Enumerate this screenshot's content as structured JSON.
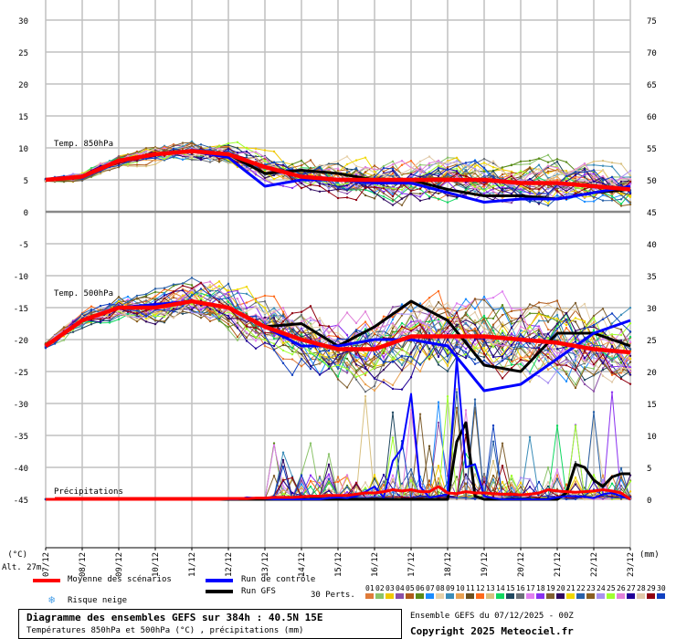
{
  "chart_data": {
    "type": "line",
    "title": "Diagramme des ensembles GEFS sur 384h : 40.5N 15E",
    "subtitle": "Températures 850hPa et 500hPa (°C) , précipitations (mm)",
    "left_axis": {
      "label": "(°C)",
      "ticks": [
        30,
        25,
        20,
        15,
        10,
        5,
        0,
        -5,
        -10,
        -15,
        -20,
        -25,
        -30,
        -35,
        -40,
        -45
      ],
      "range": [
        -45,
        30
      ]
    },
    "right_axis": {
      "label": "(mm)",
      "ticks": [
        75,
        70,
        65,
        60,
        55,
        50,
        45,
        40,
        35,
        30,
        25,
        20,
        15,
        10,
        5,
        0
      ],
      "range": [
        0,
        75
      ]
    },
    "x_ticks": [
      "07/12",
      "08/12",
      "09/12",
      "10/12",
      "11/12",
      "12/12",
      "13/12",
      "14/12",
      "15/12",
      "16/12",
      "17/12",
      "18/12",
      "19/12",
      "20/12",
      "21/12",
      "22/12",
      "23/12"
    ],
    "panel_labels": {
      "t850": "Temp. 850hPa",
      "t500": "Temp. 500hPa",
      "precip": "Précipitations"
    },
    "altitude": "Alt. 27m",
    "series_daily": {
      "t850_mean": [
        5,
        5.5,
        8,
        9,
        9.5,
        9,
        7,
        5.5,
        5,
        5,
        5,
        5,
        5,
        4.5,
        4.5,
        4,
        3.5
      ],
      "t850_control": [
        5,
        5.5,
        8,
        9,
        9.5,
        8.5,
        4,
        5,
        5,
        4.5,
        4.5,
        3,
        1.5,
        2,
        2,
        3,
        4
      ],
      "t850_gfs": [
        5,
        5.5,
        8,
        9,
        9.5,
        9,
        6,
        6.5,
        6,
        5,
        5,
        3.5,
        2.5,
        2.5,
        2,
        3,
        3.5
      ],
      "t500_mean": [
        -21,
        -17,
        -15,
        -15,
        -14,
        -15,
        -18,
        -20,
        -21.5,
        -21.5,
        -19.5,
        -19.5,
        -19.5,
        -20,
        -20.5,
        -21.5,
        -22
      ],
      "t500_control": [
        -21,
        -17,
        -15,
        -14.5,
        -14,
        -15,
        -18,
        -21,
        -21,
        -20,
        -20,
        -21,
        -28,
        -27,
        -23,
        -19,
        -17
      ],
      "t500_gfs": [
        -21,
        -17,
        -15,
        -15,
        -14,
        -15,
        -18,
        -17.5,
        -21,
        -18,
        -14,
        -17,
        -24,
        -25,
        -19,
        -19,
        -21
      ]
    },
    "precip_6h": {
      "mean": [
        0,
        0,
        0,
        0,
        0,
        0,
        0,
        0,
        0,
        0,
        0,
        0,
        0,
        0,
        0,
        0,
        0,
        0,
        0,
        0,
        0.1,
        0.1,
        0.1,
        0.2,
        0.2,
        0.3,
        0.3,
        0.3,
        0.4,
        0.5,
        0.5,
        0.6,
        0.6,
        0.6,
        0.8,
        1,
        1,
        1.2,
        1.5,
        1.3,
        1.5,
        1.2,
        1.2,
        2,
        1,
        0.9,
        1.2,
        1,
        1,
        0.9,
        0.8,
        0.8,
        0.7,
        0.8,
        1,
        1.5,
        1.3,
        1.2,
        1.1,
        1.2,
        1.3,
        1.5,
        1.3,
        1,
        0
      ],
      "control": [
        0,
        0,
        0,
        0,
        0,
        0,
        0,
        0,
        0,
        0,
        0,
        0,
        0,
        0,
        0,
        0,
        0,
        0,
        0,
        0,
        0,
        0,
        0.3,
        0.2,
        0.1,
        0,
        0,
        0,
        0,
        0,
        0,
        0.2,
        0.3,
        0.2,
        0.5,
        1.2,
        2,
        0.3,
        6,
        8,
        16.5,
        2,
        0.3,
        0.5,
        0.8,
        22,
        5,
        5.5,
        0.5,
        0.2,
        0,
        0,
        0,
        0,
        0,
        0,
        0.3,
        0.5,
        0.5,
        0.4,
        0.2,
        0.8,
        1,
        0.5,
        0
      ],
      "gfs": [
        0,
        0,
        0,
        0,
        0,
        0,
        0,
        0,
        0,
        0,
        0,
        0,
        0,
        0,
        0,
        0,
        0,
        0,
        0,
        0,
        0,
        0,
        0,
        0,
        0,
        0,
        0,
        0,
        0,
        0,
        0,
        0,
        0,
        0,
        0,
        0,
        0,
        0,
        0,
        0,
        0,
        0,
        0,
        0,
        0,
        9,
        12,
        0.5,
        0,
        0,
        0,
        0,
        0,
        0,
        0,
        0,
        0,
        1,
        5.5,
        5,
        3,
        2,
        3.5,
        4,
        4
      ]
    },
    "legend": {
      "mean": "Moyenne des scénarios",
      "control": "Run de contrôle",
      "gfs": "Run GFS",
      "snow": "Risque neige",
      "perts": "30 Perts."
    },
    "colors": {
      "mean": "#ff0000",
      "control": "#0000ff",
      "gfs": "#000000"
    },
    "perturbations": [
      {
        "id": "01",
        "color": "#e07b39"
      },
      {
        "id": "02",
        "color": "#8bc36a"
      },
      {
        "id": "03",
        "color": "#f0c800"
      },
      {
        "id": "04",
        "color": "#8b4ea6"
      },
      {
        "id": "05",
        "color": "#b05a1a"
      },
      {
        "id": "06",
        "color": "#5a8a1a"
      },
      {
        "id": "07",
        "color": "#1a8cff"
      },
      {
        "id": "08",
        "color": "#e6d0a8"
      },
      {
        "id": "09",
        "color": "#3a8cb8"
      },
      {
        "id": "10",
        "color": "#e8a050"
      },
      {
        "id": "11",
        "color": "#6a5020"
      },
      {
        "id": "12",
        "color": "#ff6a1a"
      },
      {
        "id": "13",
        "color": "#d8c080"
      },
      {
        "id": "14",
        "color": "#10d860"
      },
      {
        "id": "15",
        "color": "#204860"
      },
      {
        "id": "16",
        "color": "#6a7078"
      },
      {
        "id": "17",
        "color": "#e080f0"
      },
      {
        "id": "18",
        "color": "#8a30f0"
      },
      {
        "id": "19",
        "color": "#806030"
      },
      {
        "id": "20",
        "color": "#300860"
      },
      {
        "id": "21",
        "color": "#f0d800"
      },
      {
        "id": "22",
        "color": "#2860a8"
      },
      {
        "id": "23",
        "color": "#8a6020"
      },
      {
        "id": "24",
        "color": "#a890f0"
      },
      {
        "id": "25",
        "color": "#a0ff30"
      },
      {
        "id": "26",
        "color": "#e080d8"
      },
      {
        "id": "27",
        "color": "#200098"
      },
      {
        "id": "28",
        "color": "#e0c8a8"
      },
      {
        "id": "29",
        "color": "#900010"
      },
      {
        "id": "30",
        "color": "#1040c0"
      }
    ]
  },
  "footer": {
    "run": "Ensemble GEFS du 07/12/2025 - 00Z",
    "copyright": "Copyright 2025 Meteociel.fr"
  }
}
